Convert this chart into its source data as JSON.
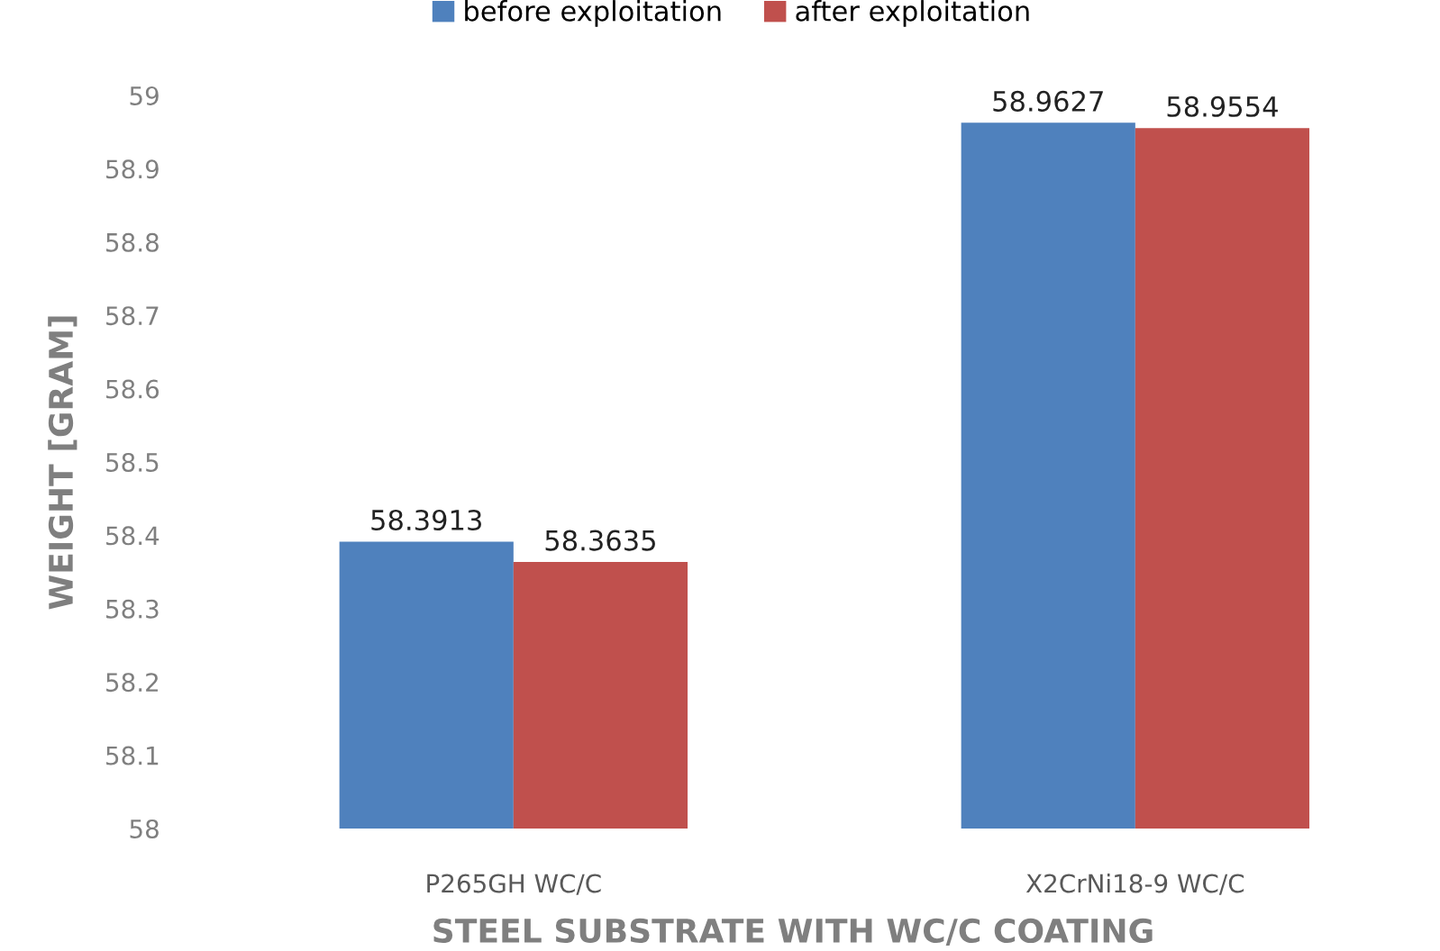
{
  "chart_data": {
    "type": "bar",
    "categories": [
      "P265GH WC/C",
      "X2CrNi18-9 WC/C"
    ],
    "series": [
      {
        "name": "before exploitation",
        "color": "#4f81bd",
        "values": [
          58.3913,
          58.9627
        ]
      },
      {
        "name": "after exploitation",
        "color": "#c0504d",
        "values": [
          58.3635,
          58.9554
        ]
      }
    ],
    "xlabel": "STEEL SUBSTRATE WITH WC/C COATING",
    "ylabel": "WEIGHT [GRAM]",
    "ylim": [
      58,
      59
    ],
    "yticks": [
      58,
      58.1,
      58.2,
      58.3,
      58.4,
      58.5,
      58.6,
      58.7,
      58.8,
      58.9,
      59
    ],
    "data_labels": true,
    "legend": "top",
    "grid": false
  }
}
